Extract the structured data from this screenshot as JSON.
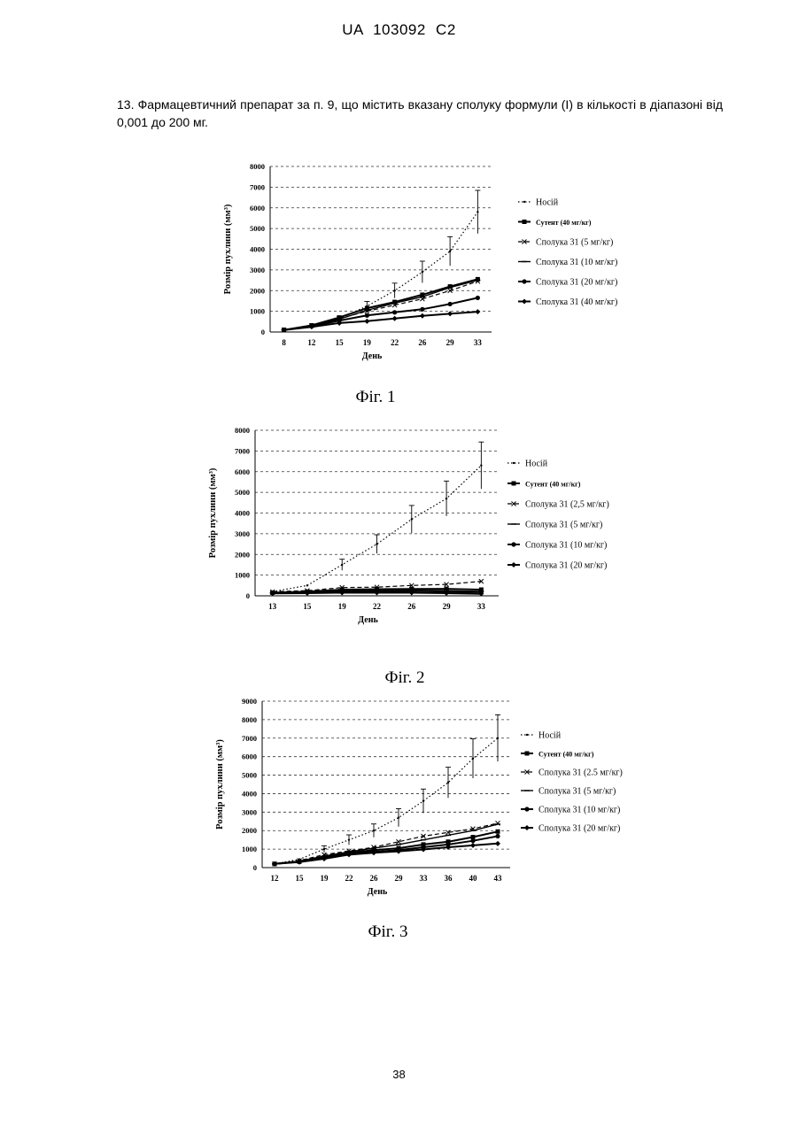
{
  "header": "UA   103092   C2",
  "claim_text": "13. Фармацевтичний препарат за п. 9, що містить вказану сполуку формули (I) в кількості в діапазоні від 0,001 до 200 мг.",
  "page_number": "38",
  "chart_data": [
    {
      "type": "line",
      "caption": "Фіг. 1",
      "xlabel": "День",
      "ylabel": "Розмір пухлини (мм³)",
      "x": [
        "8",
        "12",
        "15",
        "19",
        "22",
        "26",
        "29",
        "33"
      ],
      "ylim": [
        0,
        8000
      ],
      "yticks": [
        0,
        1000,
        2000,
        3000,
        4000,
        5000,
        6000,
        7000,
        8000
      ],
      "grid": true,
      "legend_position": "right",
      "series": [
        {
          "name": "Носій",
          "style": "dotted",
          "values": [
            100,
            300,
            650,
            1250,
            2000,
            2900,
            3900,
            5800
          ]
        },
        {
          "name": "Сутент (40 мг/кг)",
          "style": "solid",
          "values": [
            100,
            320,
            700,
            1150,
            1450,
            1800,
            2200,
            2550
          ]
        },
        {
          "name": "Сполука 31 (5 мг/кг)",
          "style": "dashed",
          "values": [
            100,
            310,
            650,
            1000,
            1300,
            1600,
            2000,
            2450
          ]
        },
        {
          "name": "Сполука 31 (10 мг/кг)",
          "style": "solid",
          "values": [
            100,
            300,
            620,
            1050,
            1400,
            1700,
            2150,
            2500
          ]
        },
        {
          "name": "Сполука 31 (20 мг/кг)",
          "style": "solid",
          "values": [
            100,
            280,
            550,
            800,
            950,
            1100,
            1350,
            1650
          ]
        },
        {
          "name": "Сполука 31 (40 мг/кг)",
          "style": "solid",
          "values": [
            100,
            250,
            430,
            520,
            650,
            780,
            880,
            980
          ]
        }
      ]
    },
    {
      "type": "line",
      "caption": "Фіг. 2",
      "xlabel": "День",
      "ylabel": "Розмір пухлини (мм³)",
      "x": [
        "13",
        "15",
        "19",
        "22",
        "26",
        "29",
        "33"
      ],
      "ylim": [
        0,
        8000
      ],
      "yticks": [
        0,
        1000,
        2000,
        3000,
        4000,
        5000,
        6000,
        7000,
        8000
      ],
      "grid": true,
      "legend_position": "right",
      "series": [
        {
          "name": "Носій",
          "style": "dotted",
          "values": [
            200,
            500,
            1500,
            2500,
            3700,
            4700,
            6300
          ]
        },
        {
          "name": "Сутент (40 мг/кг)",
          "style": "solid",
          "values": [
            150,
            200,
            300,
            320,
            330,
            340,
            300
          ]
        },
        {
          "name": "Сполука 31 (2,5 мг/кг)",
          "style": "dashed",
          "values": [
            200,
            250,
            400,
            420,
            500,
            550,
            700
          ]
        },
        {
          "name": "Сполука 31 (5 мг/кг)",
          "style": "solid",
          "values": [
            150,
            180,
            250,
            260,
            270,
            250,
            220
          ]
        },
        {
          "name": "Сполука 31 (10 мг/кг)",
          "style": "solid",
          "values": [
            150,
            170,
            220,
            230,
            240,
            200,
            180
          ]
        },
        {
          "name": "Сполука 31 (20 мг/кг)",
          "style": "solid",
          "values": [
            120,
            130,
            150,
            150,
            150,
            130,
            100
          ]
        }
      ]
    },
    {
      "type": "line",
      "caption": "Фіг. 3",
      "xlabel": "День",
      "ylabel": "Розмір пухлини (мм³)",
      "x": [
        "12",
        "15",
        "19",
        "22",
        "26",
        "29",
        "33",
        "36",
        "40",
        "43"
      ],
      "ylim": [
        0,
        9000
      ],
      "yticks": [
        0,
        1000,
        2000,
        3000,
        4000,
        5000,
        6000,
        7000,
        8000,
        9000
      ],
      "grid": true,
      "legend_position": "right",
      "series": [
        {
          "name": "Носій",
          "style": "dotted",
          "values": [
            200,
            450,
            1000,
            1500,
            2000,
            2700,
            3600,
            4600,
            5900,
            7000
          ]
        },
        {
          "name": "Сутент (40 мг/кг)",
          "style": "solid",
          "values": [
            200,
            320,
            550,
            800,
            950,
            1050,
            1250,
            1400,
            1650,
            1950
          ]
        },
        {
          "name": "Сполука 31 (2.5 мг/кг)",
          "style": "dashed",
          "values": [
            200,
            380,
            700,
            900,
            1100,
            1400,
            1700,
            1900,
            2100,
            2400
          ]
        },
        {
          "name": "Сполука 31 (5 мг/кг)",
          "style": "solid",
          "values": [
            200,
            350,
            620,
            850,
            1050,
            1250,
            1500,
            1750,
            2000,
            2350
          ]
        },
        {
          "name": "Сполука 31 (10 мг/кг)",
          "style": "solid",
          "values": [
            200,
            320,
            520,
            750,
            850,
            950,
            1100,
            1250,
            1450,
            1700
          ]
        },
        {
          "name": "Сполука 31 (20 мг/кг)",
          "style": "solid",
          "values": [
            200,
            300,
            480,
            700,
            800,
            880,
            980,
            1100,
            1200,
            1300
          ]
        }
      ]
    }
  ]
}
